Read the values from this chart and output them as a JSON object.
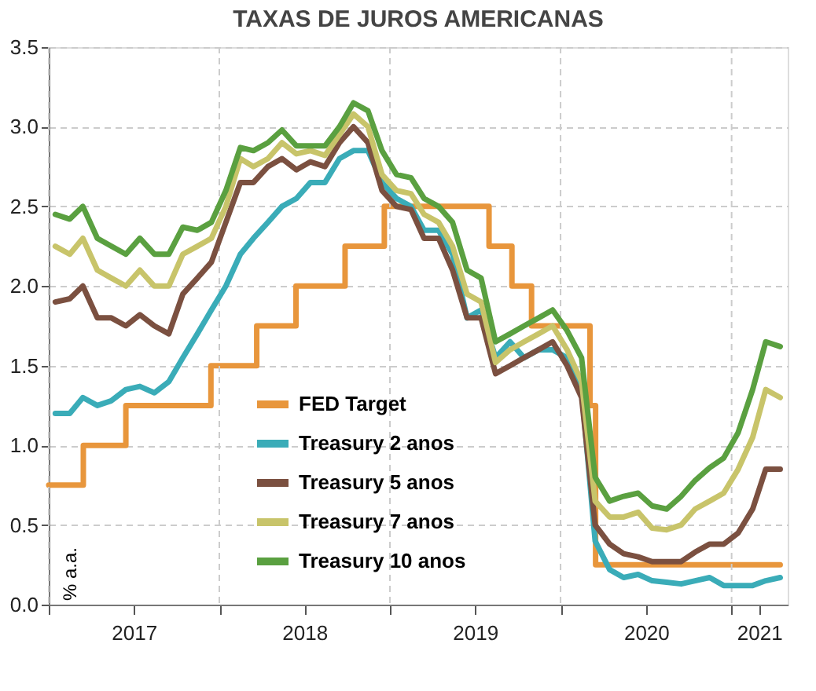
{
  "chart_data": {
    "type": "line",
    "title": "TAXAS DE JUROS AMERICANAS",
    "ylabel": "% a.a.",
    "xlim": [
      "2017-01-01",
      "2021-05-01"
    ],
    "xticks": [
      {
        "value": "2017-01-01",
        "label": null
      },
      {
        "value": "2017-07-02",
        "label": "2017"
      },
      {
        "value": "2018-01-01",
        "label": null
      },
      {
        "value": "2018-07-02",
        "label": "2018"
      },
      {
        "value": "2019-01-01",
        "label": null
      },
      {
        "value": "2019-07-02",
        "label": "2019"
      },
      {
        "value": "2020-01-01",
        "label": null
      },
      {
        "value": "2020-07-02",
        "label": "2020"
      },
      {
        "value": "2021-01-01",
        "label": null
      },
      {
        "value": "2021-03-01",
        "label": "2021"
      }
    ],
    "ylim": [
      0,
      3.5
    ],
    "yticks": [
      {
        "value": 0,
        "label": "0.0"
      },
      0.5,
      {
        "value": 1,
        "label": "1.0"
      },
      1.5,
      {
        "value": 2,
        "label": "2.0"
      },
      2.5,
      {
        "value": 3,
        "label": "3.0"
      },
      3.5
    ],
    "grid": true,
    "legend": "bottom",
    "marker": "none",
    "line_style": "solid",
    "series": [
      {
        "name": "FED Target",
        "type": "step",
        "color": "#e8963c",
        "x": [
          "2017-01-01",
          "2017-03-16",
          "2017-06-15",
          "2017-12-14",
          "2018-03-22",
          "2018-06-14",
          "2018-09-27",
          "2018-12-20",
          "2019-08-01",
          "2019-09-19",
          "2019-10-31",
          "2020-03-04",
          "2020-03-16",
          "2021-04-15"
        ],
        "values": [
          0.75,
          1.0,
          1.25,
          1.5,
          1.75,
          2.0,
          2.25,
          2.5,
          2.25,
          2.0,
          1.75,
          1.25,
          0.25,
          0.25
        ]
      },
      {
        "name": "Treasury 2 anos",
        "color": "#3aacb8",
        "values": [
          1.2,
          1.2,
          1.3,
          1.25,
          1.28,
          1.35,
          1.37,
          1.33,
          1.4,
          1.55,
          1.7,
          1.85,
          2.0,
          2.2,
          2.3,
          2.4,
          2.5,
          2.55,
          2.65,
          2.65,
          2.8,
          2.85,
          2.85,
          2.65,
          2.55,
          2.5,
          2.35,
          2.35,
          2.2,
          1.8,
          1.85,
          1.55,
          1.65,
          1.55,
          1.6,
          1.6,
          1.55,
          1.35,
          0.4,
          0.22,
          0.17,
          0.19,
          0.15,
          0.14,
          0.13,
          0.15,
          0.17,
          0.12,
          0.12,
          0.12,
          0.15,
          0.17
        ]
      },
      {
        "name": "Treasury 5 anos",
        "color": "#7b5040",
        "values": [
          1.9,
          1.92,
          2.0,
          1.8,
          1.8,
          1.75,
          1.82,
          1.75,
          1.7,
          1.95,
          2.05,
          2.15,
          2.4,
          2.65,
          2.65,
          2.75,
          2.8,
          2.73,
          2.78,
          2.75,
          2.9,
          3.0,
          2.9,
          2.6,
          2.5,
          2.48,
          2.3,
          2.3,
          2.1,
          1.8,
          1.8,
          1.45,
          1.5,
          1.55,
          1.6,
          1.65,
          1.5,
          1.3,
          0.5,
          0.38,
          0.32,
          0.3,
          0.27,
          0.27,
          0.27,
          0.33,
          0.38,
          0.38,
          0.45,
          0.6,
          0.85,
          0.85
        ]
      },
      {
        "name": "Treasury 7 anos",
        "color": "#c8c46a",
        "values": [
          2.25,
          2.2,
          2.3,
          2.1,
          2.05,
          2.0,
          2.1,
          2.0,
          2.0,
          2.2,
          2.25,
          2.3,
          2.5,
          2.8,
          2.75,
          2.8,
          2.9,
          2.83,
          2.85,
          2.82,
          2.95,
          3.08,
          3.0,
          2.7,
          2.6,
          2.58,
          2.45,
          2.4,
          2.25,
          1.95,
          1.9,
          1.52,
          1.6,
          1.65,
          1.7,
          1.75,
          1.6,
          1.4,
          0.65,
          0.55,
          0.55,
          0.58,
          0.48,
          0.47,
          0.5,
          0.6,
          0.65,
          0.7,
          0.85,
          1.05,
          1.35,
          1.3
        ]
      },
      {
        "name": "Treasury 10 anos",
        "color": "#5aa040",
        "values": [
          2.45,
          2.42,
          2.5,
          2.3,
          2.25,
          2.2,
          2.3,
          2.2,
          2.2,
          2.37,
          2.35,
          2.4,
          2.6,
          2.87,
          2.85,
          2.9,
          2.98,
          2.88,
          2.88,
          2.88,
          3.0,
          3.15,
          3.1,
          2.85,
          2.7,
          2.68,
          2.55,
          2.5,
          2.4,
          2.1,
          2.05,
          1.65,
          1.7,
          1.75,
          1.8,
          1.85,
          1.72,
          1.55,
          0.8,
          0.65,
          0.68,
          0.7,
          0.62,
          0.6,
          0.68,
          0.78,
          0.86,
          0.92,
          1.08,
          1.35,
          1.65,
          1.62
        ]
      }
    ],
    "x": [
      "2017-01-15",
      "2017-02-15",
      "2017-03-15",
      "2017-04-15",
      "2017-05-15",
      "2017-06-15",
      "2017-07-15",
      "2017-08-15",
      "2017-09-15",
      "2017-10-15",
      "2017-11-15",
      "2017-12-15",
      "2018-01-15",
      "2018-02-15",
      "2018-03-15",
      "2018-04-15",
      "2018-05-15",
      "2018-06-15",
      "2018-07-15",
      "2018-08-15",
      "2018-09-15",
      "2018-10-15",
      "2018-11-15",
      "2018-12-15",
      "2019-01-15",
      "2019-02-15",
      "2019-03-15",
      "2019-04-15",
      "2019-05-15",
      "2019-06-15",
      "2019-07-15",
      "2019-08-15",
      "2019-09-15",
      "2019-10-15",
      "2019-11-15",
      "2019-12-15",
      "2020-01-15",
      "2020-02-15",
      "2020-03-15",
      "2020-04-15",
      "2020-05-15",
      "2020-06-15",
      "2020-07-15",
      "2020-08-15",
      "2020-09-15",
      "2020-10-15",
      "2020-11-15",
      "2020-12-15",
      "2021-01-15",
      "2021-02-15",
      "2021-03-15",
      "2021-04-15"
    ]
  }
}
